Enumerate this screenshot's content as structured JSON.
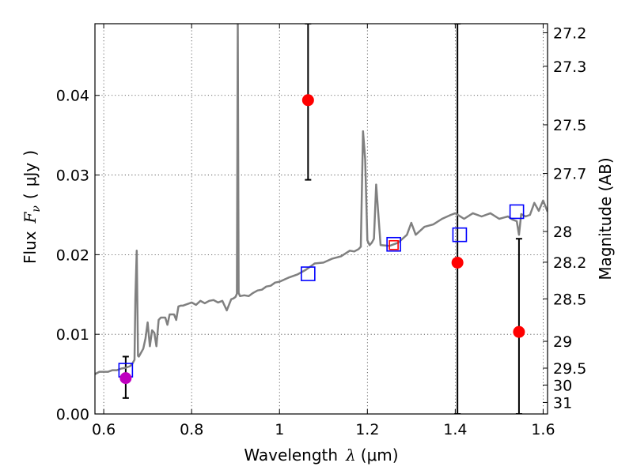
{
  "chart_data": {
    "type": "scatter",
    "xlabel_text": "Wavelength",
    "xlabel_math": "λ",
    "xlabel_unit": "(μm)",
    "ylabel_text": "Flux",
    "ylabel_math": "F",
    "ylabel_sub": "ν",
    "ylabel_unit": "μJy",
    "y2label": "Magnitude (AB)",
    "xlim": [
      0.58,
      1.61
    ],
    "ylim": [
      0.0,
      0.049
    ],
    "grid": true,
    "xticks": [
      {
        "value": 0.6,
        "label": "0.6"
      },
      {
        "value": 0.8,
        "label": "0.8"
      },
      {
        "value": 1.0,
        "label": "1"
      },
      {
        "value": 1.2,
        "label": "1.2"
      },
      {
        "value": 1.4,
        "label": "1.4"
      },
      {
        "value": 1.6,
        "label": "1.6"
      }
    ],
    "yticks": [
      {
        "value": 0.0,
        "label": "0.00"
      },
      {
        "value": 0.01,
        "label": "0.01"
      },
      {
        "value": 0.02,
        "label": "0.02"
      },
      {
        "value": 0.03,
        "label": "0.03"
      },
      {
        "value": 0.04,
        "label": "0.04"
      }
    ],
    "mag_ticks": [
      {
        "value": 27.2,
        "label": "27.2"
      },
      {
        "value": 27.3,
        "label": "27.3"
      },
      {
        "value": 27.5,
        "label": "27.5"
      },
      {
        "value": 27.7,
        "label": "27.7"
      },
      {
        "value": 28.0,
        "label": "28"
      },
      {
        "value": 28.2,
        "label": "28.2"
      },
      {
        "value": 28.5,
        "label": "28.5"
      },
      {
        "value": 29.0,
        "label": "29"
      },
      {
        "value": 29.5,
        "label": "29.5"
      },
      {
        "value": 30.0,
        "label": "30"
      },
      {
        "value": 31.0,
        "label": "31"
      }
    ],
    "series": [
      {
        "kind": "line",
        "color": "#808080",
        "x": [
          0.58,
          0.59,
          0.6,
          0.61,
          0.62,
          0.63,
          0.64,
          0.65,
          0.66,
          0.665,
          0.67,
          0.672,
          0.675,
          0.678,
          0.68,
          0.69,
          0.695,
          0.7,
          0.705,
          0.71,
          0.715,
          0.72,
          0.725,
          0.73,
          0.74,
          0.745,
          0.75,
          0.76,
          0.765,
          0.77,
          0.775,
          0.78,
          0.79,
          0.8,
          0.81,
          0.82,
          0.83,
          0.84,
          0.85,
          0.86,
          0.87,
          0.88,
          0.89,
          0.895,
          0.9,
          0.903,
          0.905,
          0.907,
          0.91,
          0.92,
          0.93,
          0.94,
          0.95,
          0.96,
          0.97,
          0.98,
          0.99,
          1.0,
          1.02,
          1.04,
          1.06,
          1.08,
          1.1,
          1.12,
          1.14,
          1.16,
          1.17,
          1.18,
          1.185,
          1.19,
          1.195,
          1.2,
          1.205,
          1.21,
          1.215,
          1.22,
          1.23,
          1.25,
          1.27,
          1.29,
          1.3,
          1.31,
          1.33,
          1.35,
          1.37,
          1.39,
          1.4,
          1.42,
          1.44,
          1.46,
          1.48,
          1.5,
          1.52,
          1.53,
          1.54,
          1.545,
          1.55,
          1.56,
          1.57,
          1.58,
          1.59,
          1.6,
          1.61
        ],
        "y": [
          0.005,
          0.0053,
          0.0053,
          0.0053,
          0.0055,
          0.0055,
          0.0057,
          0.0058,
          0.006,
          0.0063,
          0.0068,
          0.0145,
          0.0205,
          0.0073,
          0.0072,
          0.0082,
          0.0095,
          0.0115,
          0.0085,
          0.0105,
          0.0102,
          0.0085,
          0.0118,
          0.0121,
          0.0121,
          0.0112,
          0.0125,
          0.0125,
          0.0118,
          0.0135,
          0.0136,
          0.0136,
          0.0138,
          0.014,
          0.0137,
          0.0142,
          0.0139,
          0.0142,
          0.0143,
          0.014,
          0.0142,
          0.013,
          0.0144,
          0.0145,
          0.0147,
          0.0151,
          0.049,
          0.0152,
          0.0148,
          0.0149,
          0.0148,
          0.0152,
          0.0155,
          0.0156,
          0.016,
          0.0161,
          0.0165,
          0.0166,
          0.0171,
          0.0175,
          0.0181,
          0.0189,
          0.019,
          0.0195,
          0.0198,
          0.0205,
          0.0204,
          0.0207,
          0.021,
          0.0355,
          0.032,
          0.0218,
          0.0212,
          0.0215,
          0.022,
          0.0288,
          0.0212,
          0.0211,
          0.0215,
          0.0225,
          0.024,
          0.0225,
          0.0235,
          0.0238,
          0.0245,
          0.025,
          0.0252,
          0.0245,
          0.0252,
          0.0248,
          0.0252,
          0.0245,
          0.0248,
          0.0244,
          0.0242,
          0.0225,
          0.0251,
          0.0248,
          0.025,
          0.0265,
          0.0255,
          0.0268,
          0.0254
        ]
      },
      {
        "kind": "open-square",
        "color": "#0000ff",
        "x": [
          0.65,
          1.065,
          1.41,
          1.54
        ],
        "y": [
          0.0055,
          0.0176,
          0.0225,
          0.0254
        ]
      },
      {
        "kind": "open-square",
        "color": "#ff0000",
        "x": [
          1.26
        ],
        "y": [
          0.0212
        ]
      },
      {
        "kind": "open-square",
        "color": "#0000ff",
        "x": [
          1.26
        ],
        "y": [
          0.0213
        ]
      },
      {
        "kind": "filled-circle",
        "color": "#ff0000",
        "x": [
          1.065,
          1.405,
          1.545
        ],
        "y": [
          0.0394,
          0.019,
          0.0103
        ]
      },
      {
        "kind": "filled-circle",
        "color": "#bf00bf",
        "x": [
          0.65
        ],
        "y": [
          0.0045
        ]
      }
    ],
    "errorbars": [
      {
        "x": 1.065,
        "y_low": 0.0294,
        "y_high": 0.049
      },
      {
        "x": 1.405,
        "y_low": 0.0,
        "y_high": 0.049
      },
      {
        "x": 1.545,
        "y_low": 0.0,
        "y_high": 0.022
      },
      {
        "x": 0.65,
        "y_low": 0.002,
        "y_high": 0.0072
      }
    ]
  }
}
